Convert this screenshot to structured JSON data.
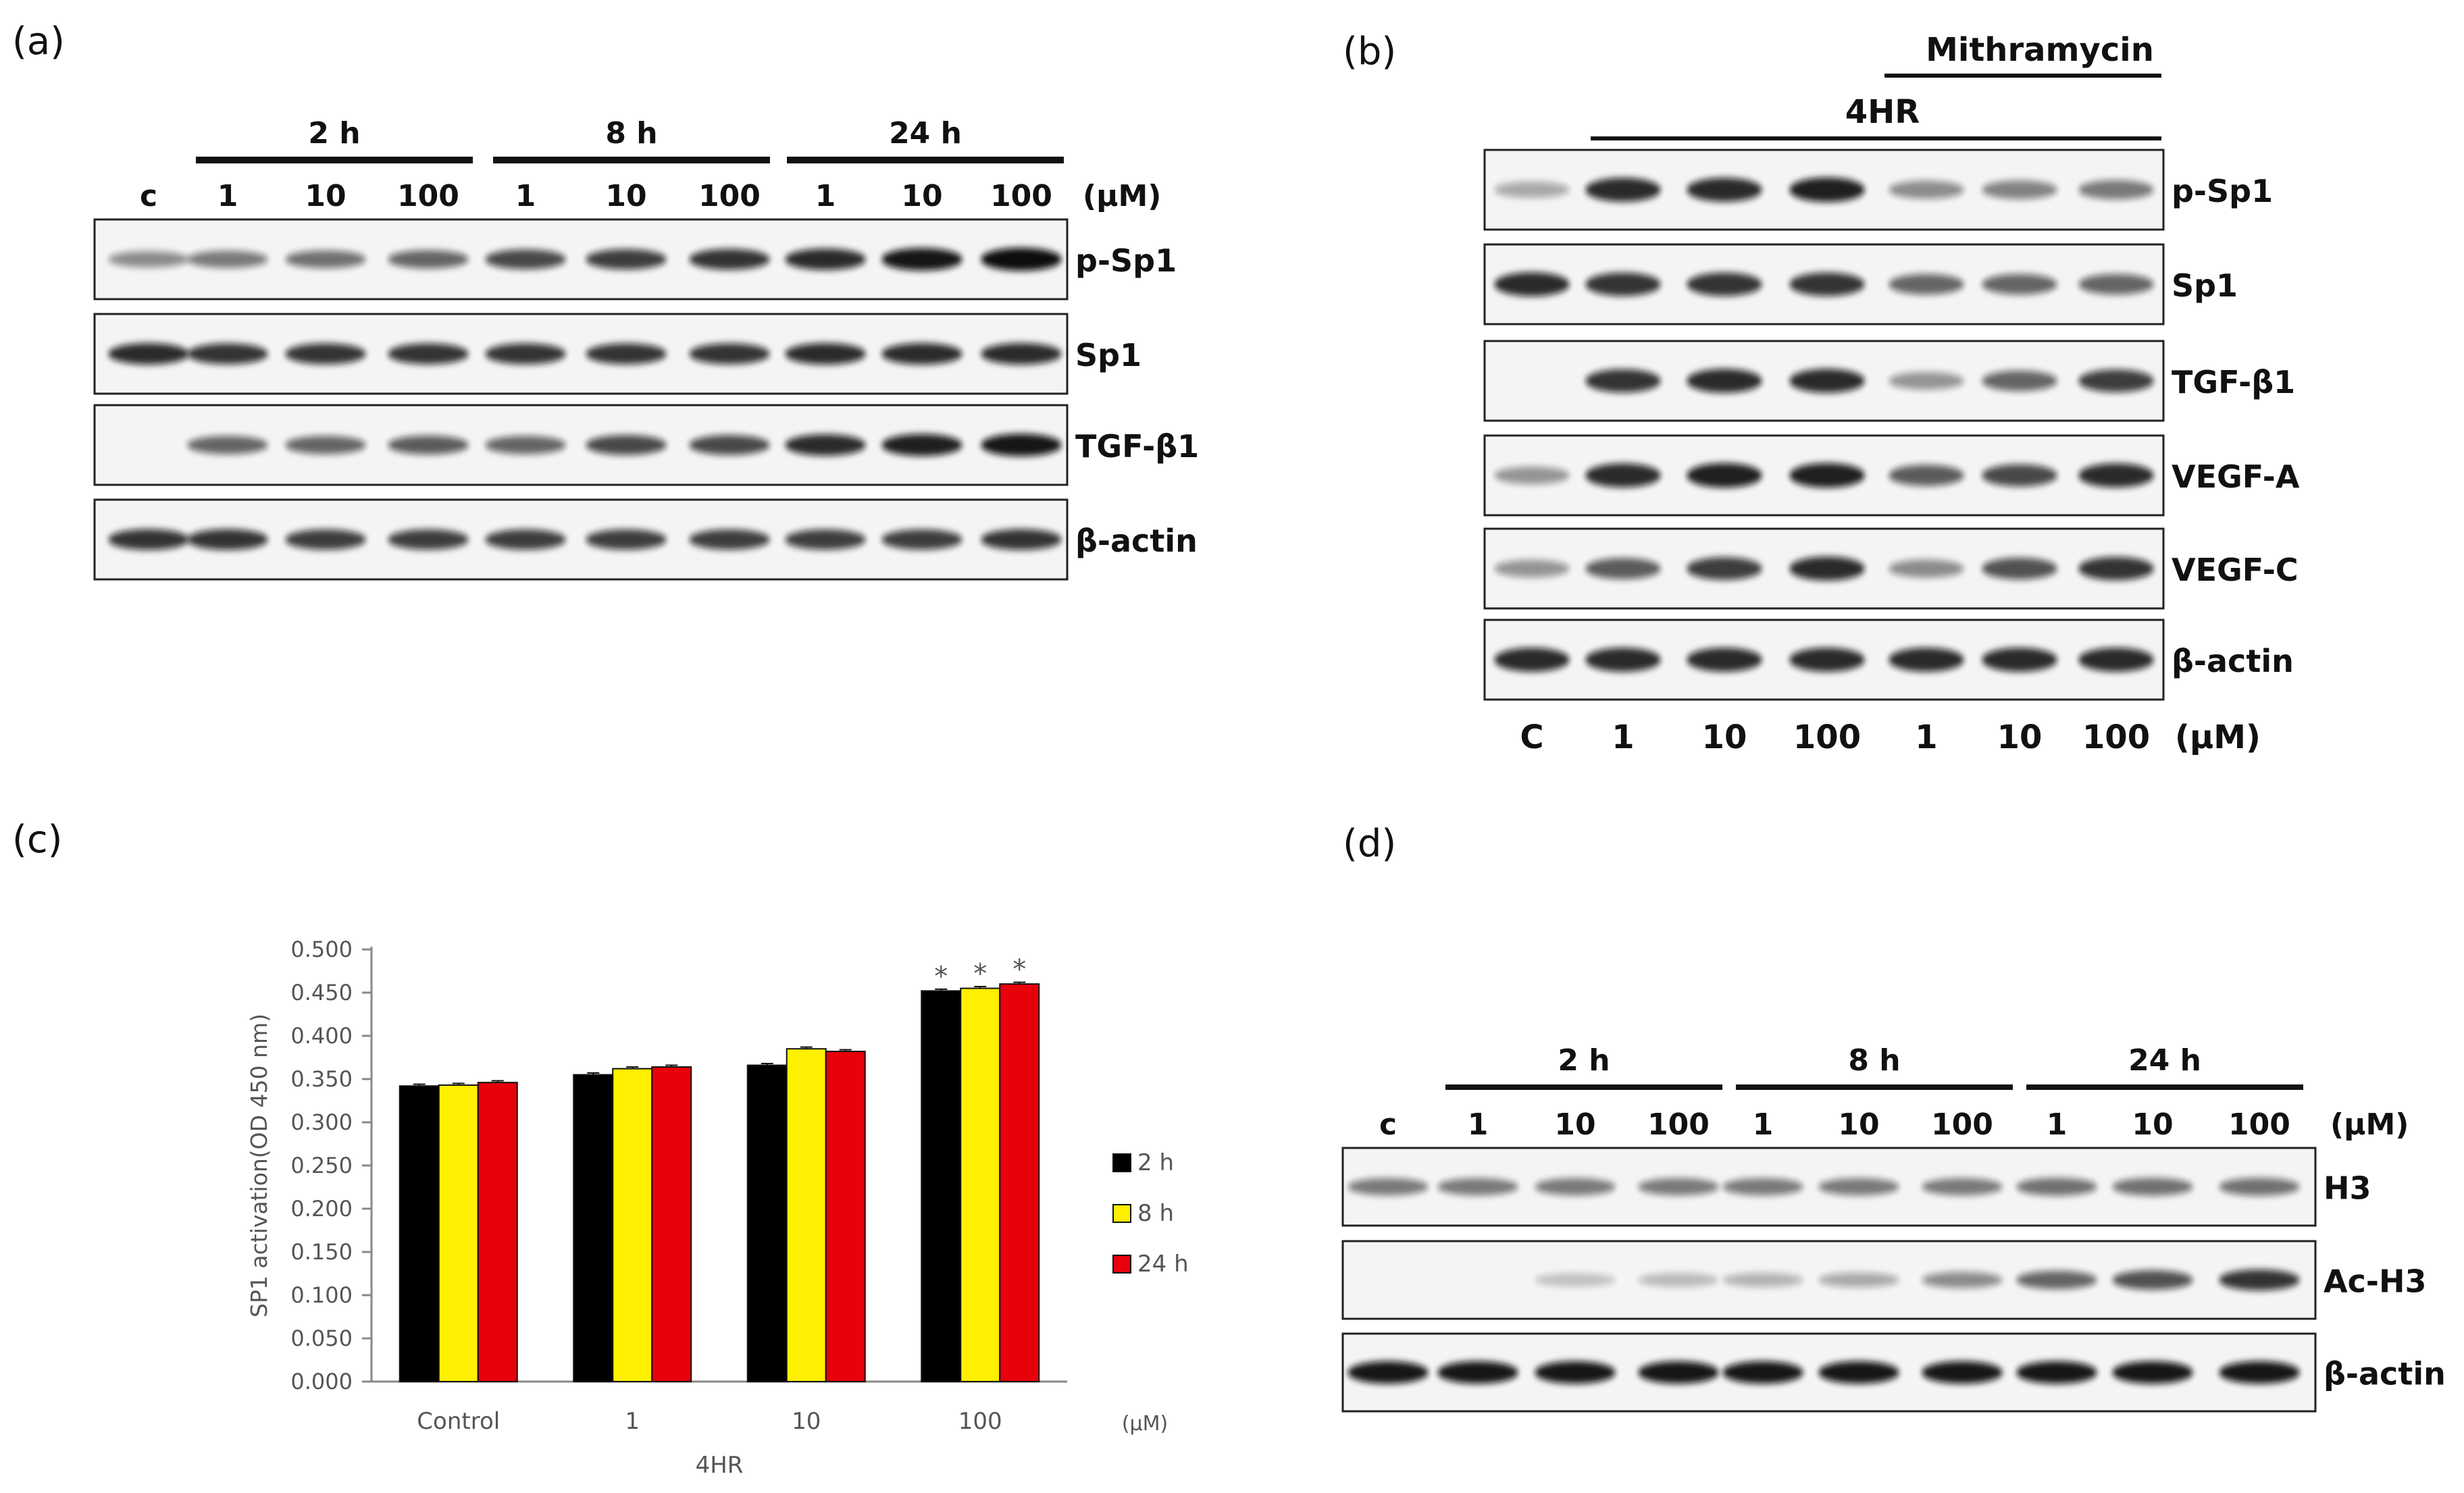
{
  "panel_a": {
    "letter": "(a)",
    "groups": [
      {
        "label": "2 h",
        "lanes": [
          "1",
          "10",
          "100"
        ]
      },
      {
        "label": "8 h",
        "lanes": [
          "1",
          "10",
          "100"
        ]
      },
      {
        "label": "24 h",
        "lanes": [
          "1",
          "10",
          "100"
        ]
      }
    ],
    "control_label": "c",
    "unit": "(μM)",
    "blots": [
      {
        "name": "p-Sp1",
        "intensity": [
          0.35,
          0.45,
          0.5,
          0.55,
          0.7,
          0.75,
          0.8,
          0.85,
          0.95,
          1.0
        ]
      },
      {
        "name": "Sp1",
        "intensity": [
          0.85,
          0.8,
          0.8,
          0.8,
          0.8,
          0.8,
          0.8,
          0.85,
          0.85,
          0.85
        ]
      },
      {
        "name": "TGF-β1",
        "intensity": [
          0.0,
          0.55,
          0.55,
          0.6,
          0.55,
          0.7,
          0.7,
          0.85,
          0.9,
          0.95
        ]
      },
      {
        "name": "β-actin",
        "intensity": [
          0.8,
          0.8,
          0.75,
          0.75,
          0.75,
          0.75,
          0.75,
          0.75,
          0.75,
          0.8
        ]
      }
    ]
  },
  "panel_b": {
    "letter": "(b)",
    "treatment_label": "4HR",
    "inhibitor_label": "Mithramycin",
    "lanes": [
      "C",
      "1",
      "10",
      "100",
      "1",
      "10",
      "100"
    ],
    "unit": "(μM)",
    "blots": [
      {
        "name": "p-Sp1",
        "intensity": [
          0.2,
          0.85,
          0.85,
          0.9,
          0.35,
          0.4,
          0.45
        ]
      },
      {
        "name": "Sp1",
        "intensity": [
          0.85,
          0.8,
          0.8,
          0.8,
          0.55,
          0.55,
          0.55
        ]
      },
      {
        "name": "TGF-β1",
        "intensity": [
          0.0,
          0.8,
          0.85,
          0.85,
          0.3,
          0.55,
          0.75
        ]
      },
      {
        "name": "VEGF-A",
        "intensity": [
          0.3,
          0.85,
          0.9,
          0.9,
          0.6,
          0.7,
          0.85
        ]
      },
      {
        "name": "VEGF-C",
        "intensity": [
          0.3,
          0.6,
          0.75,
          0.85,
          0.35,
          0.65,
          0.8
        ]
      },
      {
        "name": "β-actin",
        "intensity": [
          0.85,
          0.85,
          0.85,
          0.85,
          0.85,
          0.85,
          0.85
        ]
      }
    ]
  },
  "panel_c": {
    "letter": "(c)",
    "chart_data": {
      "type": "bar",
      "title": "",
      "categories": [
        "Control",
        "1",
        "10",
        "100"
      ],
      "series": [
        {
          "name": "2 h",
          "color": "#000000",
          "values": [
            0.342,
            0.355,
            0.366,
            0.452
          ]
        },
        {
          "name": "8 h",
          "color": "#FFEF00",
          "values": [
            0.343,
            0.362,
            0.385,
            0.455
          ]
        },
        {
          "name": "24 h",
          "color": "#E8000B",
          "values": [
            0.346,
            0.364,
            0.382,
            0.46
          ]
        }
      ],
      "errors": [
        [
          0.002,
          0.002,
          0.002,
          0.002
        ],
        [
          0.002,
          0.002,
          0.002,
          0.002
        ],
        [
          0.002,
          0.002,
          0.002,
          0.002
        ]
      ],
      "significant": [
        false,
        false,
        false,
        true
      ],
      "significance_marker": "*",
      "ylabel": "SP1  activation(OD 450 nm)",
      "xlabel": "4HR",
      "x_unit": "(μM)",
      "ylim": [
        0.0,
        0.5
      ],
      "yticks": [
        "0.000",
        "0.050",
        "0.100",
        "0.150",
        "0.200",
        "0.250",
        "0.300",
        "0.350",
        "0.400",
        "0.450",
        "0.500"
      ],
      "legend_position": "right",
      "grid": false
    }
  },
  "panel_d": {
    "letter": "(d)",
    "groups": [
      {
        "label": "2 h",
        "lanes": [
          "1",
          "10",
          "100"
        ]
      },
      {
        "label": "8 h",
        "lanes": [
          "1",
          "10",
          "100"
        ]
      },
      {
        "label": "24 h",
        "lanes": [
          "1",
          "10",
          "100"
        ]
      }
    ],
    "control_label": "c",
    "unit": "(μM)",
    "blots": [
      {
        "name": "H3",
        "intensity": [
          0.45,
          0.45,
          0.45,
          0.45,
          0.45,
          0.45,
          0.45,
          0.5,
          0.5,
          0.5
        ]
      },
      {
        "name": "Ac-H3",
        "intensity": [
          0.0,
          0.0,
          0.08,
          0.12,
          0.15,
          0.2,
          0.35,
          0.55,
          0.65,
          0.8
        ]
      },
      {
        "name": "β-actin",
        "intensity": [
          0.95,
          0.95,
          0.95,
          0.95,
          0.95,
          0.95,
          0.95,
          0.95,
          0.95,
          0.95
        ]
      }
    ]
  }
}
